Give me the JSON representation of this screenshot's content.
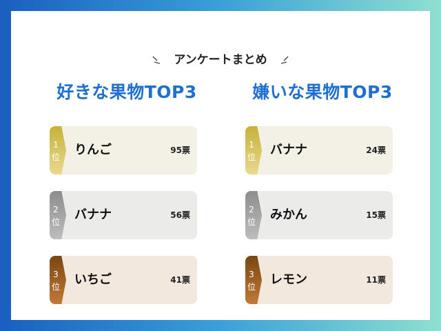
{
  "header": {
    "title": "アンケートまとめ"
  },
  "columns": [
    {
      "title": "好きな果物TOP3",
      "items": [
        {
          "rank": "1",
          "pos": "位",
          "name": "りんご",
          "votes": "95票"
        },
        {
          "rank": "2",
          "pos": "位",
          "name": "バナナ",
          "votes": "56票"
        },
        {
          "rank": "3",
          "pos": "位",
          "name": "いちご",
          "votes": "41票"
        }
      ]
    },
    {
      "title": "嫌いな果物TOP3",
      "items": [
        {
          "rank": "1",
          "pos": "位",
          "name": "バナナ",
          "votes": "24票"
        },
        {
          "rank": "2",
          "pos": "位",
          "name": "みかん",
          "votes": "15票"
        },
        {
          "rank": "3",
          "pos": "位",
          "name": "レモン",
          "votes": "11票"
        }
      ]
    }
  ],
  "colors": {
    "accent": "#1f6fd0",
    "gold": "#c7b13a",
    "silver": "#8d8d8d",
    "bronze": "#7a4612"
  },
  "icons": [
    "sparkle-left-icon",
    "sparkle-right-icon"
  ]
}
